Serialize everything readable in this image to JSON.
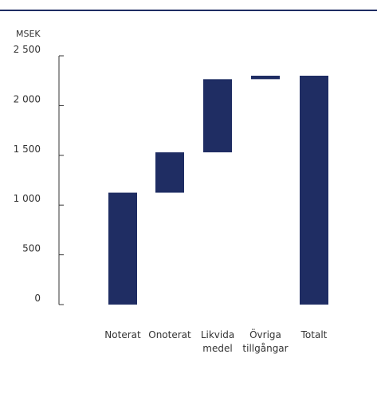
{
  "chart_data": {
    "type": "bar",
    "subtype": "waterfall",
    "unit_label": "MSEK",
    "ylim": [
      0,
      2500
    ],
    "yticks": [
      {
        "value": 0,
        "label": "0"
      },
      {
        "value": 500,
        "label": "500"
      },
      {
        "value": 1000,
        "label": "1 000"
      },
      {
        "value": 1500,
        "label": "1 500"
      },
      {
        "value": 2000,
        "label": "2 000"
      },
      {
        "value": 2500,
        "label": "2 500"
      }
    ],
    "categories": [
      {
        "lines": [
          "Noterat"
        ]
      },
      {
        "lines": [
          "Onoterat"
        ]
      },
      {
        "lines": [
          "Likvida",
          "medel"
        ]
      },
      {
        "lines": [
          "Övriga",
          "tillgångar"
        ]
      },
      {
        "lines": [
          "Totalt"
        ]
      }
    ],
    "bars": [
      {
        "start": 0,
        "end": 1125
      },
      {
        "start": 1125,
        "end": 1530
      },
      {
        "start": 1530,
        "end": 2265
      },
      {
        "start": 2265,
        "end": 2300
      },
      {
        "start": 0,
        "end": 2300
      }
    ],
    "grid": false,
    "legend": "none",
    "bar_color": "#1f2d63"
  }
}
